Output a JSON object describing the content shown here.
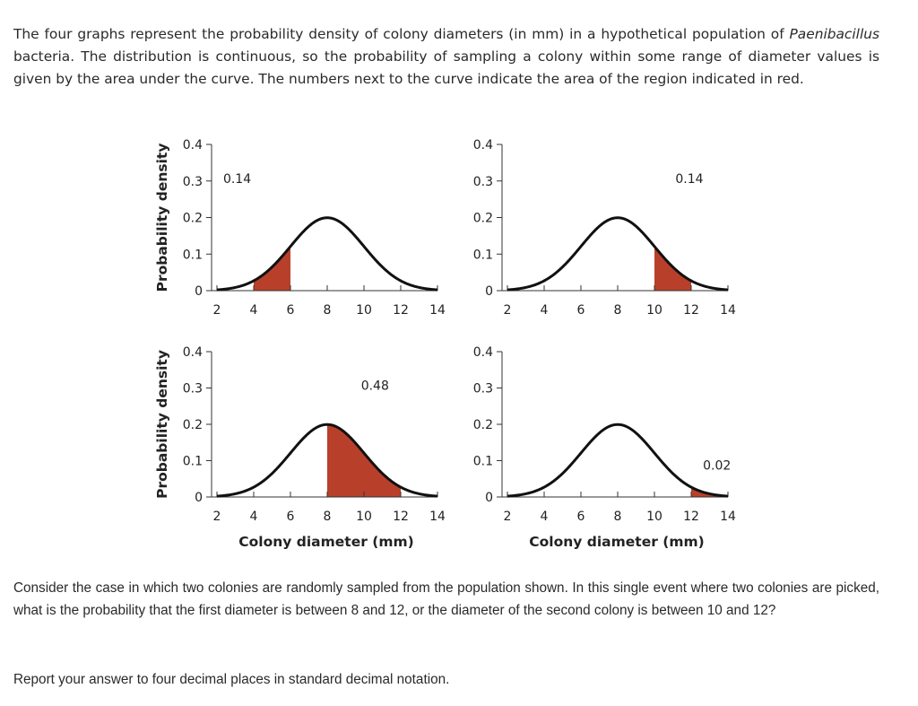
{
  "intro": {
    "before_species": "The four graphs represent the probability density of colony diameters (in mm) in a hypothetical population of ",
    "species": "Paenibacillus",
    "after_species": " bacteria. The distribution is continuous, so the probability of sampling a colony within some range of diameter values is given by the area under the curve. The numbers next to the curve indicate the area of the region indicated in red."
  },
  "question": "Consider the case in which two colonies are randomly sampled from the population shown. In this single event where two colonies are picked, what is the probability that the first diameter is between 8 and 12, or the diameter of the second colony is between 10 and 12?",
  "instruction": "Report your answer to four decimal places in standard decimal notation.",
  "colors": {
    "curve": "#111111",
    "fill": "#b8402a",
    "axis": "#333333",
    "text": "#222222"
  },
  "chart_data": [
    {
      "type": "area",
      "distribution": {
        "kind": "normal",
        "mean": 8,
        "sd": 2
      },
      "shaded_range": [
        4,
        6
      ],
      "annotation": "0.14",
      "xlim": [
        2,
        14
      ],
      "ylim": [
        0,
        0.4
      ],
      "xticks": [
        "2",
        "4",
        "6",
        "8",
        "10",
        "12",
        "14"
      ],
      "yticks": [
        "0",
        "0.1",
        "0.2",
        "0.3",
        "0.4"
      ],
      "ylabel": "Probability density",
      "xlabel": ""
    },
    {
      "type": "area",
      "distribution": {
        "kind": "normal",
        "mean": 8,
        "sd": 2
      },
      "shaded_range": [
        10,
        12
      ],
      "annotation": "0.14",
      "xlim": [
        2,
        14
      ],
      "ylim": [
        0,
        0.4
      ],
      "xticks": [
        "2",
        "4",
        "6",
        "8",
        "10",
        "12",
        "14"
      ],
      "yticks": [
        "0",
        "0.1",
        "0.2",
        "0.3",
        "0.4"
      ],
      "ylabel": "",
      "xlabel": ""
    },
    {
      "type": "area",
      "distribution": {
        "kind": "normal",
        "mean": 8,
        "sd": 2
      },
      "shaded_range": [
        8,
        12
      ],
      "annotation": "0.48",
      "xlim": [
        2,
        14
      ],
      "ylim": [
        0,
        0.4
      ],
      "xticks": [
        "2",
        "4",
        "6",
        "8",
        "10",
        "12",
        "14"
      ],
      "yticks": [
        "0",
        "0.1",
        "0.2",
        "0.3",
        "0.4"
      ],
      "ylabel": "Probability density",
      "xlabel": "Colony diameter (mm)"
    },
    {
      "type": "area",
      "distribution": {
        "kind": "normal",
        "mean": 8,
        "sd": 2
      },
      "shaded_range": [
        12,
        14
      ],
      "annotation": "0.02",
      "xlim": [
        2,
        14
      ],
      "ylim": [
        0,
        0.4
      ],
      "xticks": [
        "2",
        "4",
        "6",
        "8",
        "10",
        "12",
        "14"
      ],
      "yticks": [
        "0",
        "0.1",
        "0.2",
        "0.3",
        "0.4"
      ],
      "ylabel": "",
      "xlabel": "Colony diameter (mm)"
    }
  ]
}
